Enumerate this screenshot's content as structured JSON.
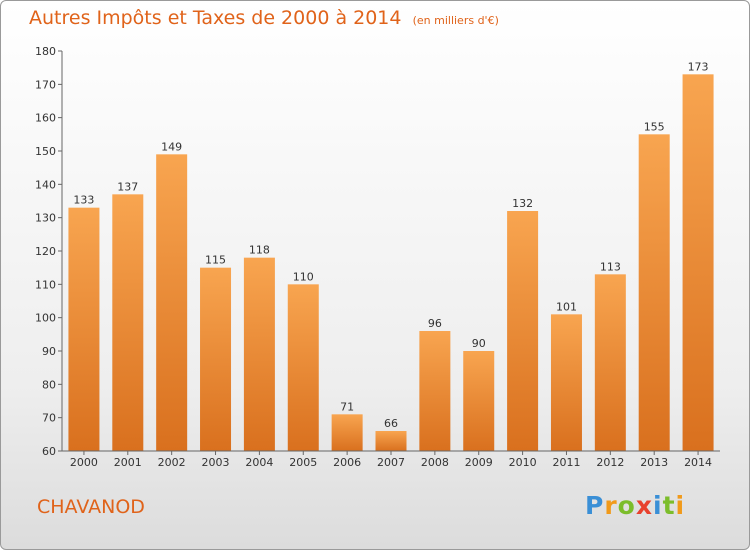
{
  "chart_data": {
    "type": "bar",
    "title": "Autres Impôts et Taxes de 2000 à 2014",
    "unit": "(en milliers d'€)",
    "categories": [
      "2000",
      "2001",
      "2002",
      "2003",
      "2004",
      "2005",
      "2006",
      "2007",
      "2008",
      "2009",
      "2010",
      "2011",
      "2012",
      "2013",
      "2014"
    ],
    "values": [
      133,
      137,
      149,
      115,
      118,
      110,
      71,
      66,
      96,
      90,
      132,
      101,
      113,
      155,
      173
    ],
    "ylim": [
      60,
      180
    ],
    "yticks": [
      60,
      70,
      80,
      90,
      100,
      110,
      120,
      130,
      140,
      150,
      160,
      170,
      180
    ],
    "grid": false,
    "bar_color_light": "#f8a550",
    "bar_color_dark": "#d9701e"
  },
  "town": "CHAVANOD",
  "logo": {
    "text": "Proxiti",
    "letters": [
      {
        "ch": "P",
        "color": "#3a8fd6"
      },
      {
        "ch": "r",
        "color": "#f19a1a"
      },
      {
        "ch": "o",
        "color": "#7cbd2b"
      },
      {
        "ch": "x",
        "color": "#e8412d"
      },
      {
        "ch": "i",
        "color": "#3a8fd6"
      },
      {
        "ch": "t",
        "color": "#7cbd2b"
      },
      {
        "ch": "i",
        "color": "#f19a1a"
      }
    ]
  }
}
